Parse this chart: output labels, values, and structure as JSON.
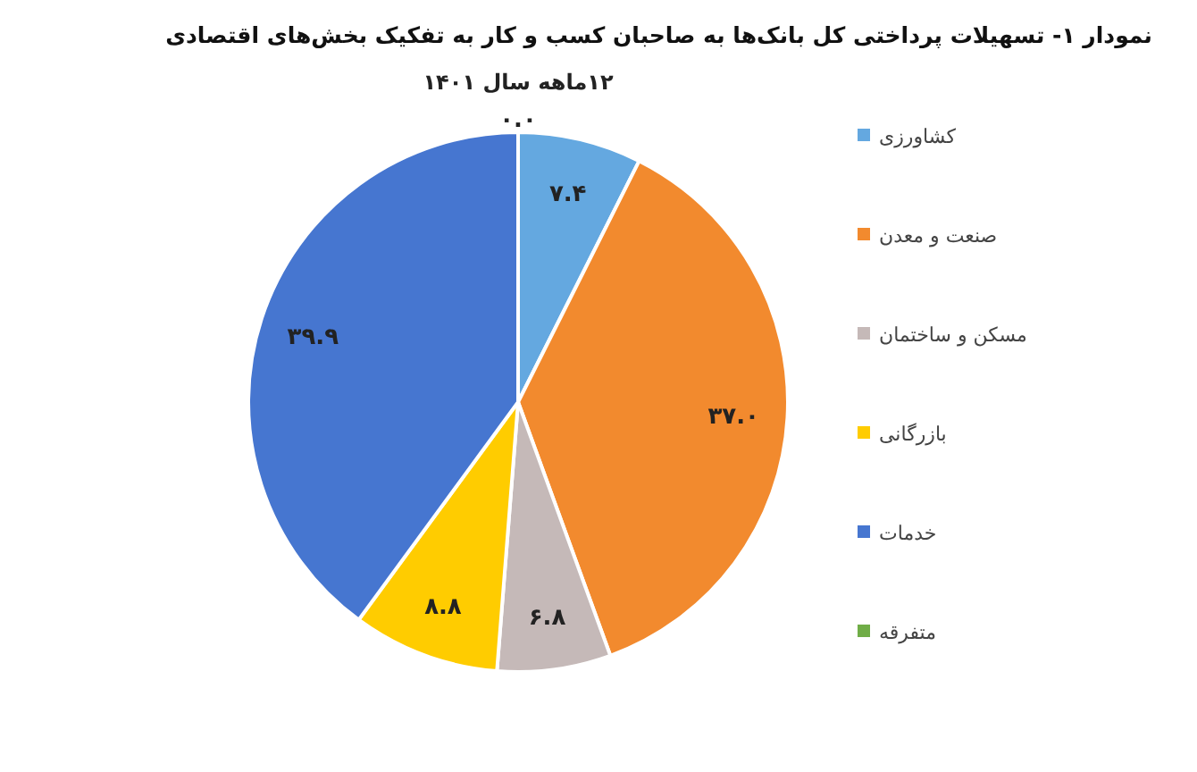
{
  "chart_data": {
    "type": "pie",
    "title": "نمودار ۱- تسهیلات پرداختی کل بانک‌ها به صاحبان کسب و کار به تفکیک بخش‌های اقتصادی",
    "subtitle": "۱۲ماهه سال ۱۴۰۱",
    "categories": [
      "کشاورزی",
      "صنعت و معدن",
      "مسکن و ساختمان",
      "بازرگانی",
      "خدمات",
      "متفرقه"
    ],
    "values": [
      7.4,
      37.0,
      6.8,
      8.8,
      39.9,
      0.0
    ],
    "value_labels": [
      "۷.۴",
      "۳۷.۰",
      "۶.۸",
      "۸.۸",
      "۳۹.۹",
      "۰.۰"
    ],
    "colors": [
      "#64a8e0",
      "#f28a2e",
      "#c5b9b8",
      "#ffcc00",
      "#4676d0",
      "#70ad47"
    ],
    "legend": "right"
  }
}
